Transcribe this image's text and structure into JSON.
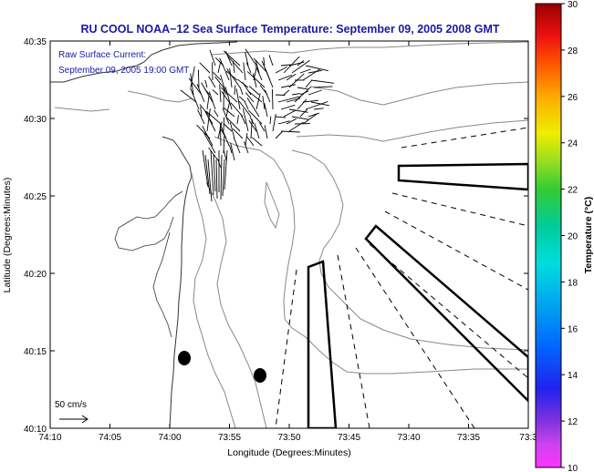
{
  "chart_data": {
    "type": "map",
    "title": "RU COOL  NOAA−12  Sea Surface Temperature:  September 09, 2005 2008 GMT",
    "annotations": [
      "Raw Surface Current:",
      "September 09, 2005 19:00 GMT"
    ],
    "xlabel": "Longitude (Degrees:Minutes)",
    "ylabel": "Latitude (Degrees:Minutes)",
    "x_ticks": [
      "74:10",
      "74:05",
      "74:00",
      "73:55",
      "73:50",
      "73:45",
      "73:40",
      "73:35",
      "73:3"
    ],
    "x_range_min_west": [
      10,
      30
    ],
    "y_ticks": [
      "40:10",
      "40:15",
      "40:20",
      "40:25",
      "40:30",
      "40:35"
    ],
    "y_range_min": [
      10,
      35
    ],
    "scale_arrow": {
      "label": "50 cm/s",
      "speed_cm_s": 50
    },
    "colorbar": {
      "label": "Temperature (°C)",
      "range": [
        10,
        30
      ],
      "ticks": [
        "30",
        "28",
        "26",
        "24",
        "22",
        "20",
        "18",
        "16",
        "14",
        "12",
        "10"
      ]
    }
  }
}
